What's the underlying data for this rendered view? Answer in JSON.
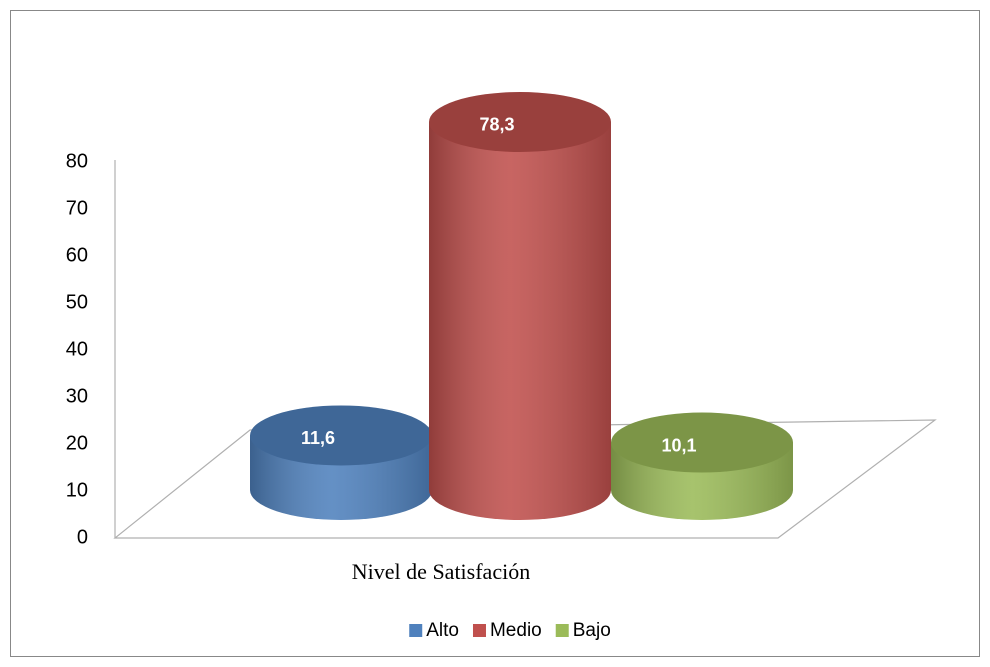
{
  "chart_data": {
    "type": "bar3d",
    "categories": [
      "Nivel de Satisfación"
    ],
    "series": [
      {
        "name": "Alto",
        "color": "#4f81bd",
        "values": [
          11.6
        ],
        "value_labels": [
          "11,6"
        ]
      },
      {
        "name": "Medio",
        "color": "#c0504d",
        "values": [
          78.3
        ],
        "value_labels": [
          "78,3"
        ]
      },
      {
        "name": "Bajo",
        "color": "#9bbb59",
        "values": [
          10.1
        ],
        "value_labels": [
          "10,1"
        ]
      }
    ],
    "ylim": [
      0,
      80
    ],
    "yticks": [
      0,
      10,
      20,
      30,
      40,
      50,
      60,
      70,
      80
    ],
    "legend": "bottom"
  }
}
